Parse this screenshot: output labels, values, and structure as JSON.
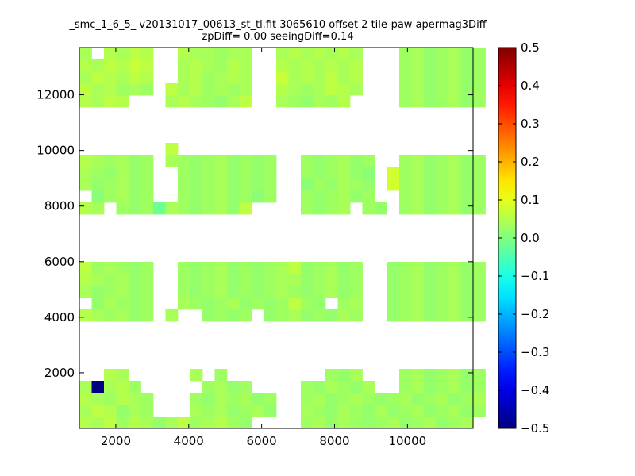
{
  "chart_data": {
    "type": "heatmap",
    "title_lines": [
      "_smc_1_6_5_ v20131017_00613_st_tl.fit 3065610 offset 2 tile-paw apermag3Diff",
      "zpDiff= 0.00 seeingDiff=0.14"
    ],
    "xlabel": "",
    "ylabel": "",
    "xlim": [
      1000,
      11800
    ],
    "ylim": [
      0,
      13700
    ],
    "xticks": [
      2000,
      4000,
      6000,
      8000,
      10000
    ],
    "yticks": [
      2000,
      4000,
      6000,
      8000,
      10000,
      12000
    ],
    "cell_size": [
      337.5,
      428.125
    ],
    "colormap": "jet",
    "clim": [
      -0.5,
      0.5
    ],
    "colorbar_ticks": [
      0.5,
      0.4,
      0.3,
      0.2,
      0.1,
      0.0,
      -0.1,
      -0.2,
      -0.3,
      -0.4,
      -0.5
    ],
    "colorbar_tick_labels": [
      "0.5",
      "0.4",
      "0.3",
      "0.2",
      "0.1",
      "0.0",
      "−0.1",
      "−0.2",
      "−0.3",
      "−0.4",
      "−0.5"
    ],
    "grid": false,
    "rows": [
      {
        "x0": 1000,
        "y0": 0,
        "values": [
          0.05,
          0.04,
          0.06,
          0.03,
          0.05,
          0.04,
          0.02,
          0.04,
          0.06,
          0.03,
          0.04,
          0.05,
          0.03,
          0.02,
          null,
          null,
          null,
          null,
          0.03,
          0.04,
          0.02,
          0.04,
          0.03,
          0.02,
          0.03,
          0.04,
          0.02,
          0.03,
          0.04,
          0.02,
          0.03,
          0.04
        ]
      },
      {
        "x0": 1000,
        "y0": 428.1,
        "values": [
          0.04,
          0.06,
          0.05,
          0.02,
          0.04,
          0.03,
          null,
          null,
          null,
          0.04,
          0.03,
          0.04,
          0.02,
          0.03,
          0.04,
          0.02,
          null,
          null,
          0.04,
          0.03,
          0.02,
          0.04,
          0.03,
          0.02,
          0.04,
          0.02,
          0.03,
          0.04,
          0.02,
          0.03,
          0.04,
          0.02,
          0.03
        ]
      },
      {
        "x0": 1000,
        "y0": 856.3,
        "values": [
          0.05,
          0.04,
          0.03,
          0.05,
          0.04,
          0.03,
          null,
          null,
          null,
          0.03,
          0.02,
          0.04,
          0.03,
          0.04,
          0.02,
          0.03,
          null,
          null,
          0.03,
          0.04,
          0.02,
          0.03,
          0.04,
          0.03,
          0.02,
          0.03,
          0.04,
          0.02,
          0.03,
          0.04,
          0.02,
          0.03,
          0.04
        ]
      },
      {
        "x0": 1000,
        "y0": 1284.4,
        "values": [
          0.04,
          -0.5,
          0.04,
          0.05,
          0.03,
          null,
          null,
          null,
          null,
          null,
          0.03,
          0.04,
          0.02,
          0.03,
          null,
          null,
          null,
          null,
          0.03,
          0.02,
          0.04,
          0.03,
          0.02,
          0.04,
          null,
          null,
          0.03,
          0.04,
          0.02,
          0.03,
          0.04,
          0.02,
          0.03
        ]
      },
      {
        "x0": 1000,
        "y0": 1712.5,
        "values": [
          null,
          null,
          0.05,
          0.04,
          null,
          null,
          null,
          null,
          null,
          0.04,
          null,
          0.03,
          null,
          null,
          null,
          null,
          null,
          null,
          null,
          null,
          0.03,
          0.02,
          0.04,
          null,
          null,
          null,
          0.03,
          0.04,
          0.02,
          0.03,
          0.04,
          0.02,
          0.03
        ]
      },
      {
        "x0": 1000,
        "y0": 3853.1,
        "values": [
          0.05,
          0.04,
          0.03,
          0.04,
          0.02,
          0.03,
          null,
          0.04,
          null,
          null,
          0.02,
          0.03,
          0.02,
          0.03,
          null,
          0.02,
          0.03,
          0.04,
          0.02,
          0.03,
          0.02,
          0.04,
          0.03,
          null,
          null,
          0.02,
          0.03,
          0.04,
          0.02,
          0.03,
          0.04,
          0.02,
          0.03
        ]
      },
      {
        "x0": 1000,
        "y0": 4281.3,
        "values": [
          null,
          0.02,
          0.04,
          0.03,
          0.02,
          0.03,
          null,
          null,
          0.04,
          0.03,
          0.02,
          0.03,
          0.04,
          0.02,
          0.03,
          0.02,
          0.03,
          0.06,
          0.03,
          0.02,
          null,
          0.03,
          0.04,
          null,
          null,
          0.02,
          0.03,
          0.04,
          0.02,
          0.03,
          0.04,
          0.02,
          0.03
        ]
      },
      {
        "x0": 1000,
        "y0": 4709.4,
        "values": [
          0.04,
          0.02,
          0.03,
          0.04,
          0.02,
          0.03,
          null,
          null,
          0.03,
          0.02,
          0.03,
          0.04,
          0.02,
          0.03,
          0.02,
          0.03,
          0.04,
          0.03,
          0.02,
          0.03,
          0.04,
          0.02,
          0.03,
          null,
          null,
          0.02,
          0.03,
          0.04,
          0.02,
          0.03,
          0.04,
          0.02,
          0.03
        ]
      },
      {
        "x0": 1000,
        "y0": 5137.5,
        "values": [
          0.05,
          0.04,
          0.03,
          0.04,
          0.02,
          0.03,
          null,
          null,
          0.03,
          0.02,
          0.03,
          0.04,
          0.02,
          0.03,
          0.02,
          0.03,
          0.04,
          0.04,
          0.02,
          0.03,
          0.04,
          0.02,
          0.03,
          null,
          null,
          0.02,
          0.03,
          0.04,
          0.02,
          0.03,
          0.04,
          0.02,
          0.03
        ]
      },
      {
        "x0": 1000,
        "y0": 5565.6,
        "values": [
          0.06,
          0.03,
          0.04,
          0.03,
          0.02,
          0.03,
          null,
          null,
          0.03,
          0.02,
          0.03,
          0.04,
          0.02,
          0.03,
          0.02,
          0.03,
          0.04,
          0.06,
          0.02,
          0.03,
          0.04,
          0.02,
          0.03,
          null,
          null,
          0.02,
          0.03,
          0.04,
          0.02,
          0.03,
          0.04,
          0.02,
          0.03
        ]
      },
      {
        "x0": 1000,
        "y0": 7706.3,
        "values": [
          0.05,
          0.04,
          null,
          0.03,
          0.02,
          0.03,
          -0.02,
          0.04,
          0.03,
          0.02,
          0.03,
          0.04,
          0.02,
          0.06,
          null,
          null,
          null,
          null,
          0.03,
          0.02,
          0.03,
          0.04,
          null,
          0.03,
          0.02,
          null,
          0.03,
          0.04,
          0.02,
          0.03,
          0.04,
          0.02,
          0.03
        ]
      },
      {
        "x0": 1000,
        "y0": 8134.4,
        "values": [
          null,
          0.01,
          0.03,
          0.04,
          0.02,
          0.03,
          null,
          null,
          0.03,
          0.02,
          0.03,
          0.04,
          0.02,
          0.03,
          0.01,
          0.03,
          null,
          null,
          0.03,
          0.02,
          0.03,
          0.04,
          0.02,
          0.03,
          null,
          null,
          0.03,
          0.04,
          0.02,
          0.03,
          0.04,
          0.02,
          0.03
        ]
      },
      {
        "x0": 1000,
        "y0": 8562.5,
        "values": [
          0.04,
          0.02,
          0.03,
          0.04,
          0.02,
          0.03,
          null,
          null,
          0.03,
          0.02,
          0.03,
          0.04,
          0.02,
          0.03,
          0.02,
          0.03,
          null,
          null,
          0.01,
          0.03,
          0.02,
          0.04,
          0.03,
          0.02,
          null,
          0.08,
          0.03,
          0.04,
          0.02,
          0.03,
          0.04,
          0.02,
          0.03
        ]
      },
      {
        "x0": 1000,
        "y0": 8990.6,
        "values": [
          0.04,
          0.03,
          0.02,
          0.04,
          0.02,
          0.03,
          null,
          null,
          0.03,
          0.02,
          0.03,
          0.04,
          0.02,
          0.03,
          0.02,
          0.03,
          null,
          null,
          0.03,
          0.02,
          0.03,
          0.04,
          0.02,
          0.01,
          null,
          0.08,
          0.03,
          0.04,
          0.02,
          0.03,
          0.04,
          0.02,
          0.03
        ]
      },
      {
        "x0": 1000,
        "y0": 9418.8,
        "values": [
          0.05,
          0.04,
          0.03,
          0.04,
          0.02,
          0.03,
          null,
          0.04,
          0.03,
          0.02,
          0.03,
          0.04,
          0.02,
          0.03,
          0.02,
          0.03,
          null,
          null,
          0.03,
          0.02,
          0.03,
          0.04,
          0.02,
          0.03,
          null,
          null,
          0.03,
          0.04,
          0.02,
          0.03,
          0.04,
          0.02,
          0.03
        ]
      },
      {
        "x0": 1000,
        "y0": 9846.9,
        "values": [
          null,
          null,
          null,
          null,
          null,
          null,
          null,
          0.06
        ]
      },
      {
        "x0": 1000,
        "y0": 11559.4,
        "values": [
          0.05,
          0.04,
          0.06,
          0.05,
          null,
          null,
          null,
          0.04,
          0.05,
          0.04,
          0.03,
          0.02,
          0.04,
          0.06,
          null,
          null,
          0.04,
          0.03,
          0.02,
          0.04,
          0.03,
          0.05,
          null,
          null,
          null,
          null,
          0.03,
          0.04,
          0.02,
          0.03,
          0.04,
          0.02,
          0.03
        ]
      },
      {
        "x0": 1000,
        "y0": 11987.5,
        "values": [
          0.06,
          0.04,
          0.05,
          0.03,
          0.04,
          0.03,
          null,
          0.06,
          0.04,
          0.05,
          0.03,
          0.04,
          0.03,
          0.04,
          null,
          null,
          0.05,
          0.04,
          0.03,
          0.04,
          0.06,
          0.05,
          0.04,
          null,
          null,
          null,
          0.03,
          0.04,
          0.02,
          0.03,
          0.04,
          0.02,
          0.03
        ]
      },
      {
        "x0": 1000,
        "y0": 12415.6,
        "values": [
          0.04,
          0.06,
          0.05,
          0.04,
          0.06,
          0.05,
          null,
          null,
          0.04,
          0.05,
          0.03,
          0.04,
          0.05,
          0.04,
          null,
          null,
          0.07,
          0.04,
          0.05,
          0.04,
          0.06,
          0.04,
          0.05,
          null,
          null,
          null,
          0.03,
          0.04,
          0.02,
          0.03,
          0.04,
          0.02,
          0.03
        ]
      },
      {
        "x0": 1000,
        "y0": 12843.8,
        "values": [
          0.05,
          0.04,
          0.06,
          0.05,
          0.07,
          0.06,
          null,
          null,
          0.04,
          0.05,
          0.04,
          0.03,
          0.05,
          0.04,
          null,
          null,
          0.05,
          0.04,
          0.05,
          0.04,
          0.05,
          0.04,
          0.05,
          null,
          null,
          null,
          0.03,
          0.04,
          0.02,
          0.03,
          0.04,
          0.02,
          0.03
        ]
      },
      {
        "x0": 1000,
        "y0": 13271.9,
        "values": [
          0.04,
          null,
          0.05,
          0.04,
          0.06,
          0.05,
          null,
          null,
          0.05,
          0.04,
          0.04,
          0.03,
          0.04,
          0.04,
          null,
          null,
          0.04,
          0.05,
          0.04,
          0.05,
          0.04,
          0.05,
          0.04,
          null,
          null,
          null,
          0.03,
          0.04,
          0.02,
          0.03,
          0.04,
          0.02,
          0.03
        ]
      }
    ]
  }
}
